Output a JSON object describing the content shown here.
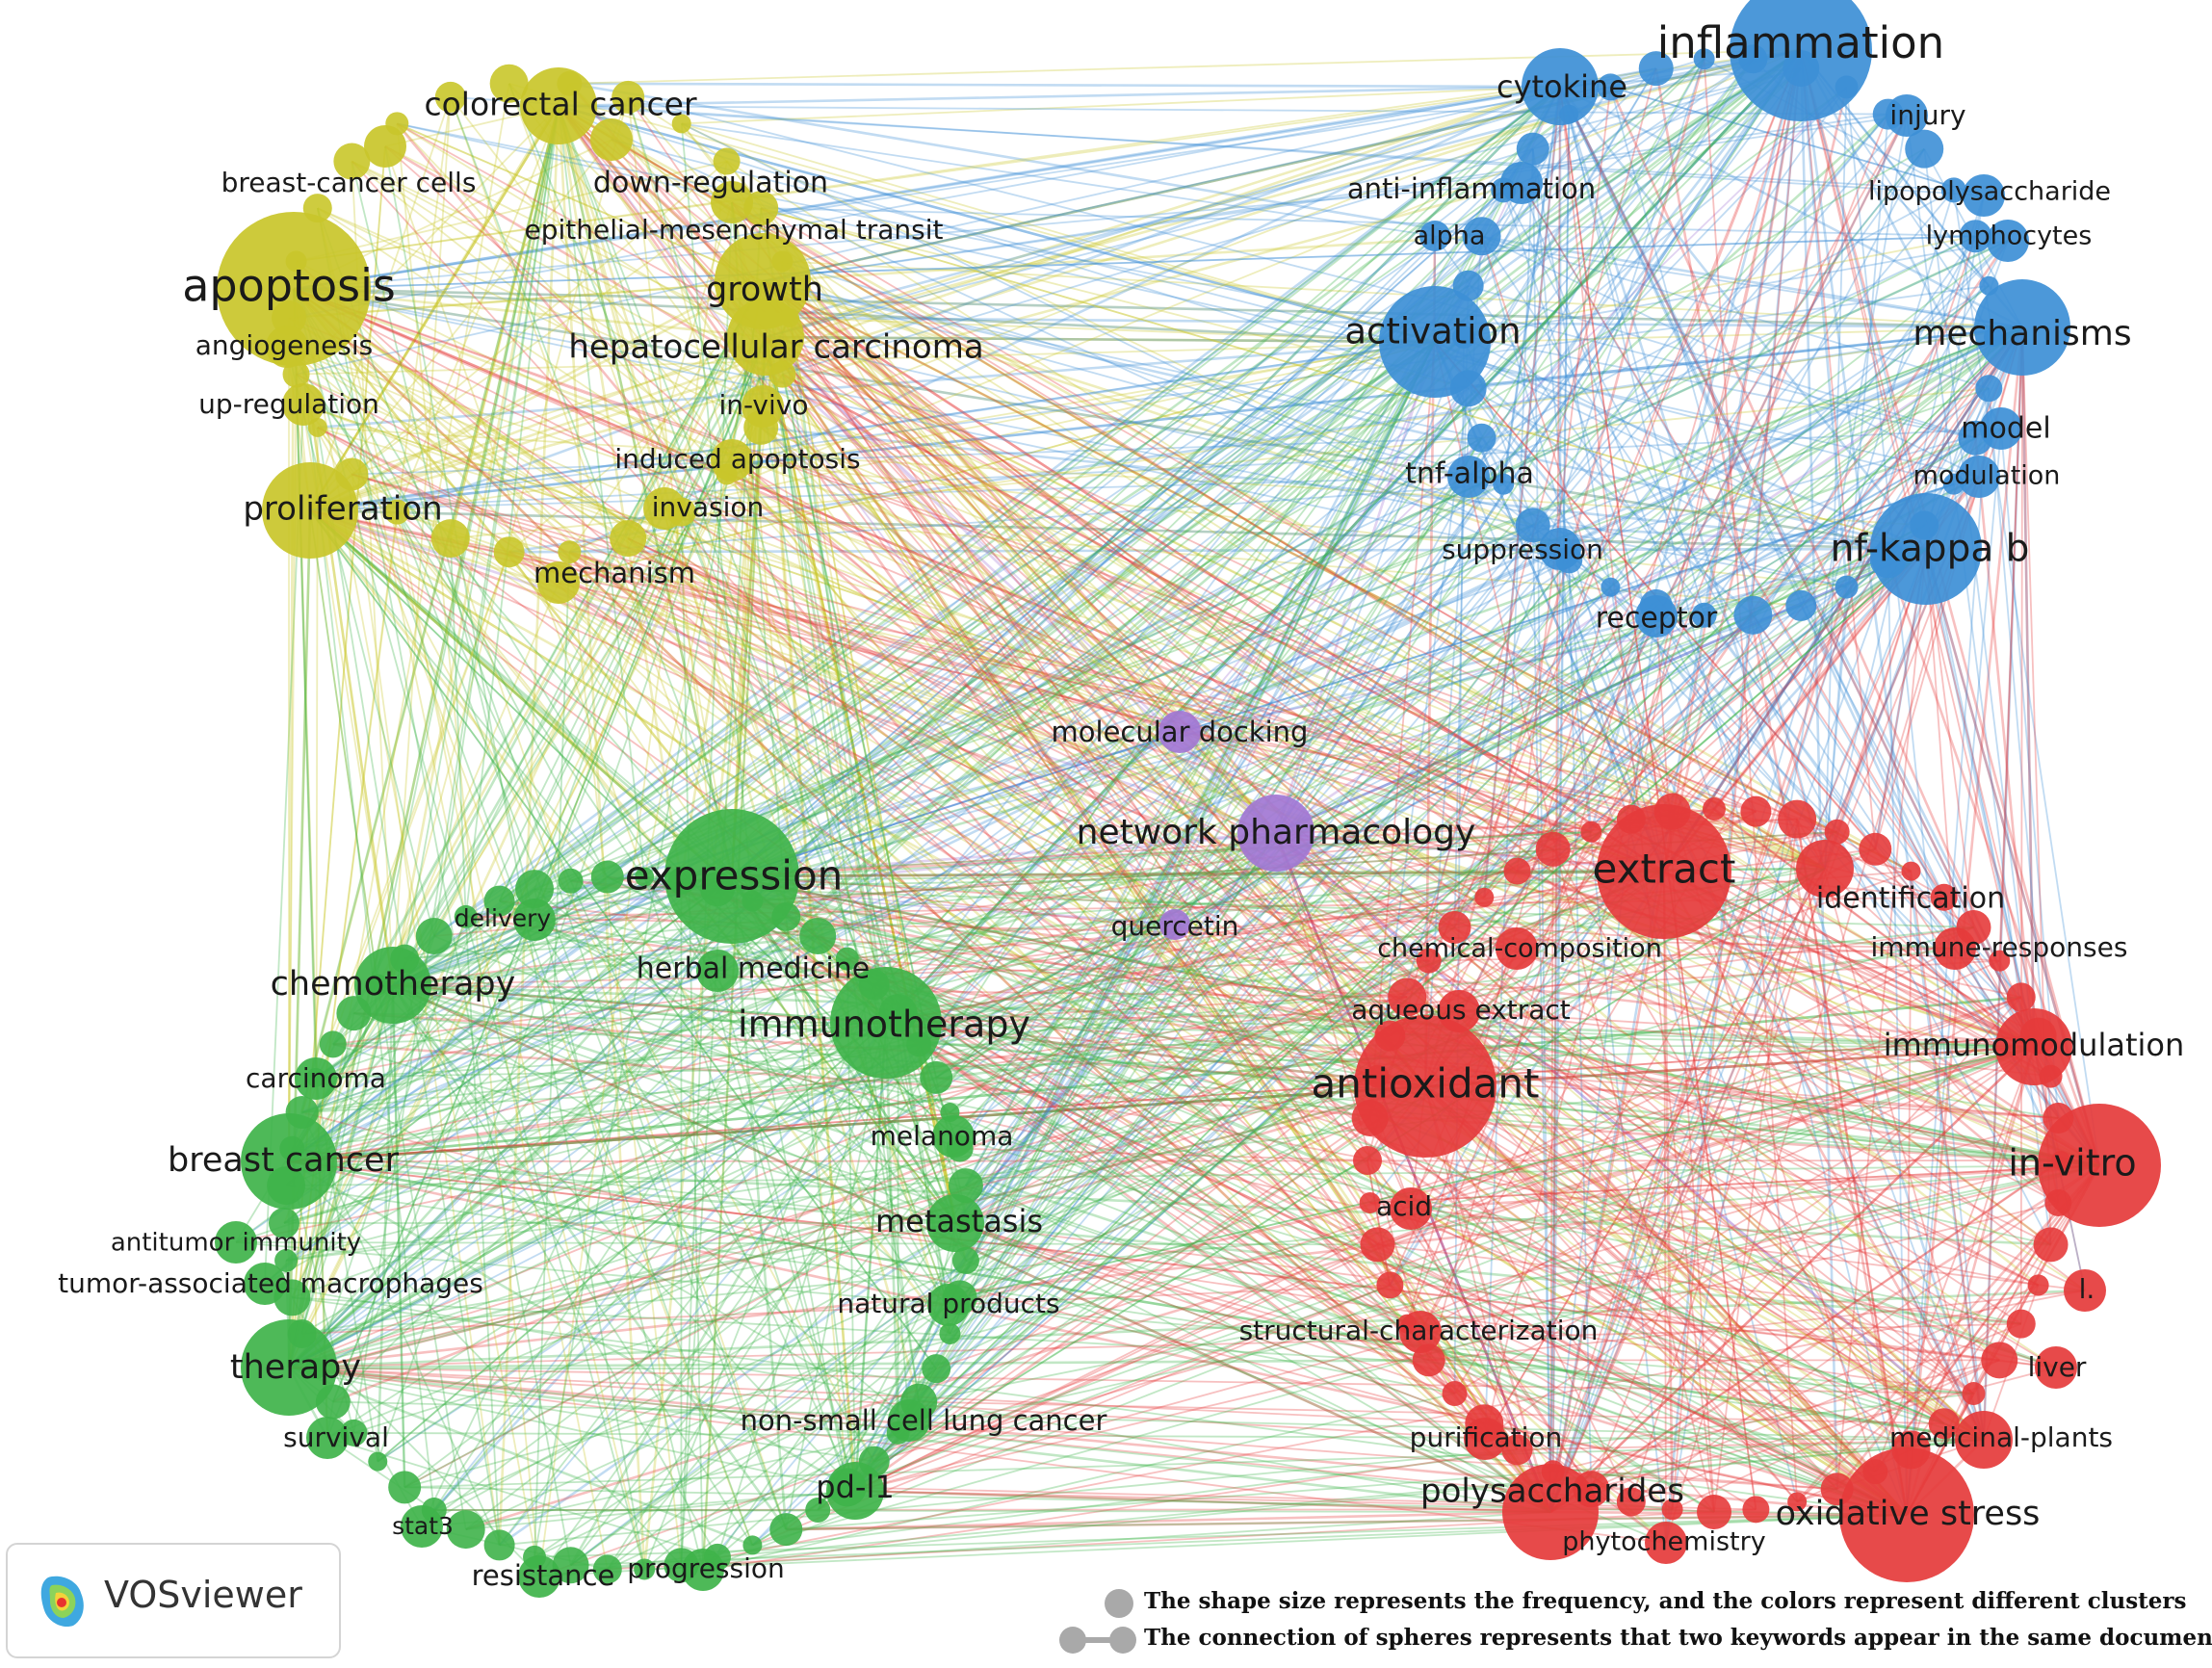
{
  "clusters": {
    "yellow": {
      "color": "#c9c62a"
    },
    "blue": {
      "color": "#3d8fd6"
    },
    "red": {
      "color": "#e53b3b"
    },
    "green": {
      "color": "#3fb34a"
    },
    "purple": {
      "color": "#a277d4"
    }
  },
  "keywords": [
    {
      "label": "colorectal cancer",
      "cluster": "yellow",
      "weight": 4
    },
    {
      "label": "breast-cancer cells",
      "cluster": "yellow",
      "weight": 2
    },
    {
      "label": "down-regulation",
      "cluster": "yellow",
      "weight": 2
    },
    {
      "label": "epithelial-mesenchymal transit",
      "cluster": "yellow",
      "weight": 2
    },
    {
      "label": "apoptosis",
      "cluster": "yellow",
      "weight": 10
    },
    {
      "label": "growth",
      "cluster": "yellow",
      "weight": 5
    },
    {
      "label": "angiogenesis",
      "cluster": "yellow",
      "weight": 2
    },
    {
      "label": "hepatocellular carcinoma",
      "cluster": "yellow",
      "weight": 4
    },
    {
      "label": "up-regulation",
      "cluster": "yellow",
      "weight": 2
    },
    {
      "label": "in-vivo",
      "cluster": "yellow",
      "weight": 2
    },
    {
      "label": "induced apoptosis",
      "cluster": "yellow",
      "weight": 2
    },
    {
      "label": "proliferation",
      "cluster": "yellow",
      "weight": 5
    },
    {
      "label": "invasion",
      "cluster": "yellow",
      "weight": 2
    },
    {
      "label": "mechanism",
      "cluster": "yellow",
      "weight": 2
    },
    {
      "label": "inflammation",
      "cluster": "blue",
      "weight": 9
    },
    {
      "label": "cytokine",
      "cluster": "blue",
      "weight": 4
    },
    {
      "label": "injury",
      "cluster": "blue",
      "weight": 2
    },
    {
      "label": "anti-inflammation",
      "cluster": "blue",
      "weight": 2
    },
    {
      "label": "lipopolysaccharide",
      "cluster": "blue",
      "weight": 2
    },
    {
      "label": "alpha",
      "cluster": "blue",
      "weight": 1
    },
    {
      "label": "lymphocytes",
      "cluster": "blue",
      "weight": 2
    },
    {
      "label": "activation",
      "cluster": "blue",
      "weight": 6
    },
    {
      "label": "mechanisms",
      "cluster": "blue",
      "weight": 5
    },
    {
      "label": "model",
      "cluster": "blue",
      "weight": 2
    },
    {
      "label": "tnf-alpha",
      "cluster": "blue",
      "weight": 2
    },
    {
      "label": "modulation",
      "cluster": "blue",
      "weight": 2
    },
    {
      "label": "suppression",
      "cluster": "blue",
      "weight": 2
    },
    {
      "label": "nf-kappa b",
      "cluster": "blue",
      "weight": 6
    },
    {
      "label": "receptor",
      "cluster": "blue",
      "weight": 2
    },
    {
      "label": "molecular docking",
      "cluster": "purple",
      "weight": 2
    },
    {
      "label": "network pharmacology",
      "cluster": "purple",
      "weight": 4
    },
    {
      "label": "quercetin",
      "cluster": "purple",
      "weight": 1
    },
    {
      "label": "expression",
      "cluster": "green",
      "weight": 8
    },
    {
      "label": "delivery",
      "cluster": "green",
      "weight": 2
    },
    {
      "label": "herbal medicine",
      "cluster": "green",
      "weight": 2
    },
    {
      "label": "chemotherapy",
      "cluster": "green",
      "weight": 4
    },
    {
      "label": "immunotherapy",
      "cluster": "green",
      "weight": 6
    },
    {
      "label": "carcinoma",
      "cluster": "green",
      "weight": 2
    },
    {
      "label": "melanoma",
      "cluster": "green",
      "weight": 2
    },
    {
      "label": "breast cancer",
      "cluster": "green",
      "weight": 5
    },
    {
      "label": "metastasis",
      "cluster": "green",
      "weight": 3
    },
    {
      "label": "antitumor immunity",
      "cluster": "green",
      "weight": 2
    },
    {
      "label": "tumor-associated macrophages",
      "cluster": "green",
      "weight": 2
    },
    {
      "label": "natural products",
      "cluster": "green",
      "weight": 2
    },
    {
      "label": "therapy",
      "cluster": "green",
      "weight": 5
    },
    {
      "label": "survival",
      "cluster": "green",
      "weight": 2
    },
    {
      "label": "non-small cell lung cancer",
      "cluster": "green",
      "weight": 2
    },
    {
      "label": "pd-l1",
      "cluster": "green",
      "weight": 3
    },
    {
      "label": "stat3",
      "cluster": "green",
      "weight": 2
    },
    {
      "label": "resistance",
      "cluster": "green",
      "weight": 2
    },
    {
      "label": "progression",
      "cluster": "green",
      "weight": 2
    },
    {
      "label": "extract",
      "cluster": "red",
      "weight": 8
    },
    {
      "label": "identification",
      "cluster": "red",
      "weight": 3
    },
    {
      "label": "chemical-composition",
      "cluster": "red",
      "weight": 2
    },
    {
      "label": "immune-responses",
      "cluster": "red",
      "weight": 2
    },
    {
      "label": "aqueous extract",
      "cluster": "red",
      "weight": 2
    },
    {
      "label": "immunomodulation",
      "cluster": "red",
      "weight": 4
    },
    {
      "label": "antioxidant",
      "cluster": "red",
      "weight": 9
    },
    {
      "label": "in-vitro",
      "cluster": "red",
      "weight": 7
    },
    {
      "label": "acid",
      "cluster": "red",
      "weight": 2
    },
    {
      "label": "l.",
      "cluster": "red",
      "weight": 2
    },
    {
      "label": "structural-characterization",
      "cluster": "red",
      "weight": 2
    },
    {
      "label": "liver",
      "cluster": "red",
      "weight": 2
    },
    {
      "label": "purification",
      "cluster": "red",
      "weight": 2
    },
    {
      "label": "medicinal-plants",
      "cluster": "red",
      "weight": 3
    },
    {
      "label": "polysaccharides",
      "cluster": "red",
      "weight": 5
    },
    {
      "label": "oxidative stress",
      "cluster": "red",
      "weight": 8
    },
    {
      "label": "phytochemistry",
      "cluster": "red",
      "weight": 2
    }
  ],
  "branding": {
    "logo_text": "VOSviewer"
  },
  "legend": {
    "size_note": "The shape size represents the frequency, and the colors represent different clusters",
    "link_note": "The connection of spheres represents that two keywords appear in the same document"
  }
}
